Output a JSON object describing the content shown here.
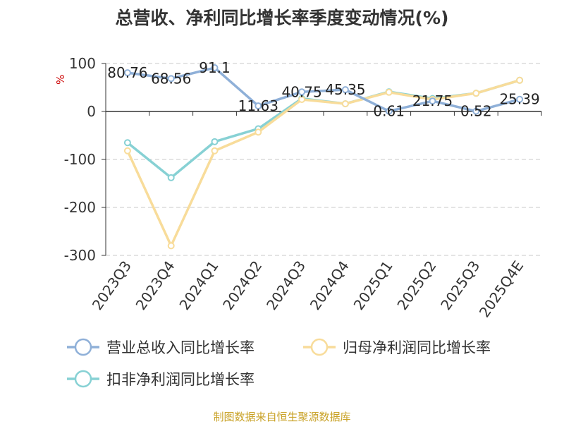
{
  "chart_data": {
    "type": "line",
    "title": "总营收、净利同比增长率季度变动情况(%)",
    "ylabel": "%",
    "ylim": [
      -300,
      100
    ],
    "yticks": [
      100,
      0,
      -100,
      -200,
      -300
    ],
    "grid": true,
    "legend_position": "bottom",
    "categories": [
      "2023Q3",
      "2023Q4",
      "2024Q1",
      "2024Q2",
      "2024Q3",
      "2024Q4",
      "2025Q1",
      "2025Q2",
      "2025Q3",
      "2025Q4E"
    ],
    "series": [
      {
        "name": "营业总收入同比增长率",
        "color": "#8fb0d8",
        "values": [
          80.76,
          68.56,
          91.1,
          11.63,
          40.75,
          45.35,
          0.61,
          21.75,
          0.52,
          25.39
        ],
        "labels": [
          "80.76",
          "68.56",
          "91.1",
          "11.63",
          "40.75",
          "45.35",
          "0.61",
          "21.75",
          "0.52",
          "25.39"
        ]
      },
      {
        "name": "归母净利润同比增长率",
        "color": "#f8dc9a",
        "values": [
          -82,
          -280,
          -82,
          -43,
          25,
          16,
          40,
          25,
          38,
          65
        ]
      },
      {
        "name": "扣非净利润同比增长率",
        "color": "#87d1d4",
        "values": [
          -65,
          -138,
          -63,
          -36,
          27,
          16,
          41,
          27,
          38,
          65
        ]
      }
    ],
    "source": "制图数据来自恒生聚源数据库"
  }
}
